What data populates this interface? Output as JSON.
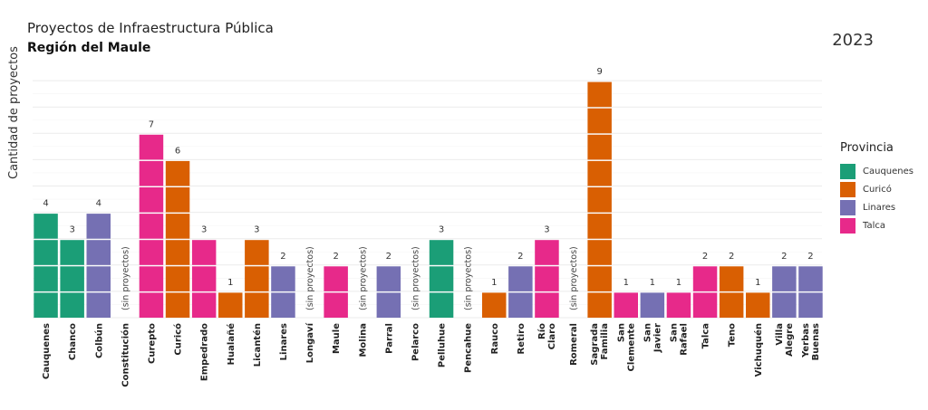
{
  "chart_data": {
    "type": "bar",
    "title": "Proyectos de Infraestructura Pública",
    "subtitle": "Región del Maule",
    "year_label": "2023",
    "ylabel": "Cantidad de proyectos",
    "xlabel": "",
    "ylim": [
      0,
      9
    ],
    "grid": true,
    "legend_title": "Provincia",
    "legend_position": "right",
    "empty_label": "(sin proyectos)",
    "provinces": [
      {
        "name": "Cauquenes",
        "color": "#1b9e77"
      },
      {
        "name": "Curicó",
        "color": "#d95f02"
      },
      {
        "name": "Linares",
        "color": "#7570b3"
      },
      {
        "name": "Talca",
        "color": "#e7298a"
      }
    ],
    "categories": [
      {
        "label": "Cauquenes",
        "value": 4,
        "province": "Cauquenes"
      },
      {
        "label": "Chanco",
        "value": 3,
        "province": "Cauquenes"
      },
      {
        "label": "Colbún",
        "value": 4,
        "province": "Linares"
      },
      {
        "label": "Constitución",
        "value": 0,
        "province": "Talca"
      },
      {
        "label": "Curepto",
        "value": 7,
        "province": "Talca"
      },
      {
        "label": "Curicó",
        "value": 6,
        "province": "Curicó"
      },
      {
        "label": "Empedrado",
        "value": 3,
        "province": "Talca"
      },
      {
        "label": "Hualañé",
        "value": 1,
        "province": "Curicó"
      },
      {
        "label": "Licantén",
        "value": 3,
        "province": "Curicó"
      },
      {
        "label": "Linares",
        "value": 2,
        "province": "Linares"
      },
      {
        "label": "Longaví",
        "value": 0,
        "province": "Linares"
      },
      {
        "label": "Maule",
        "value": 2,
        "province": "Talca"
      },
      {
        "label": "Molina",
        "value": 0,
        "province": "Curicó"
      },
      {
        "label": "Parral",
        "value": 2,
        "province": "Linares"
      },
      {
        "label": "Pelarco",
        "value": 0,
        "province": "Talca"
      },
      {
        "label": "Pelluhue",
        "value": 3,
        "province": "Cauquenes"
      },
      {
        "label": "Pencahue",
        "value": 0,
        "province": "Talca"
      },
      {
        "label": "Rauco",
        "value": 1,
        "province": "Curicó"
      },
      {
        "label": "Retiro",
        "value": 2,
        "province": "Linares"
      },
      {
        "label": "Río Claro",
        "value": 3,
        "province": "Talca"
      },
      {
        "label": "Romeral",
        "value": 0,
        "province": "Curicó"
      },
      {
        "label": "Sagrada Familia",
        "value": 9,
        "province": "Curicó"
      },
      {
        "label": "San Clemente",
        "value": 1,
        "province": "Talca"
      },
      {
        "label": "San Javier",
        "value": 1,
        "province": "Linares"
      },
      {
        "label": "San Rafael",
        "value": 1,
        "province": "Talca"
      },
      {
        "label": "Talca",
        "value": 2,
        "province": "Talca"
      },
      {
        "label": "Teno",
        "value": 2,
        "province": "Curicó"
      },
      {
        "label": "Vichuquén",
        "value": 1,
        "province": "Curicó"
      },
      {
        "label": "Villa Alegre",
        "value": 2,
        "province": "Linares"
      },
      {
        "label": "Yerbas Buenas",
        "value": 2,
        "province": "Linares"
      }
    ]
  }
}
